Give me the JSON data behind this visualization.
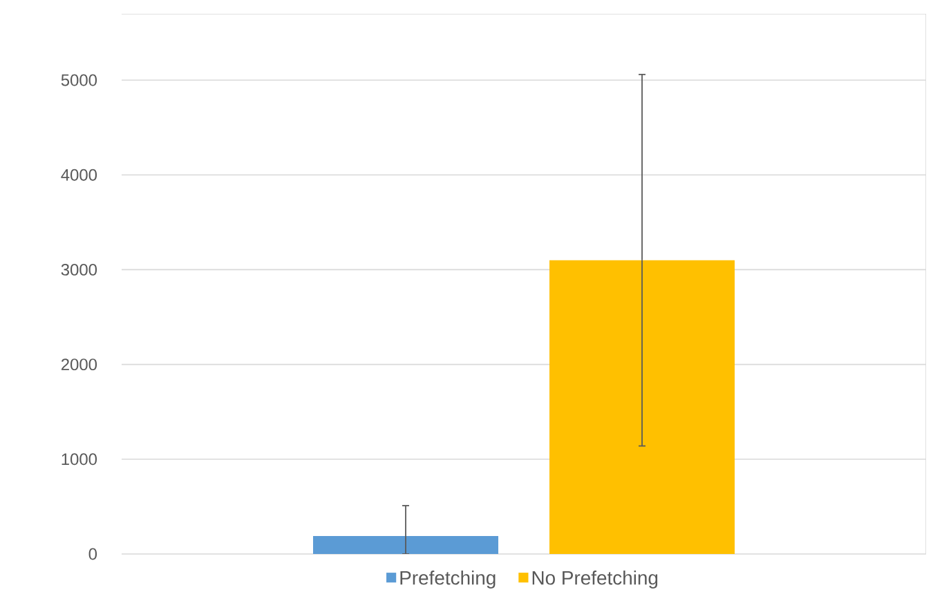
{
  "chart_data": {
    "type": "bar",
    "categories": [
      null
    ],
    "series": [
      {
        "name": "Prefetching",
        "color": "#5b9bd5",
        "values": [
          190
        ],
        "errors": [
          [
            0,
            510
          ]
        ]
      },
      {
        "name": "No Prefetching",
        "color": "#ffc000",
        "values": [
          3100
        ],
        "errors": [
          [
            1140,
            5060
          ]
        ]
      }
    ],
    "ylim": [
      0,
      5700
    ],
    "yticks": [
      0,
      1000,
      2000,
      3000,
      4000,
      5000
    ],
    "grid": "y",
    "legend": "bottom"
  }
}
